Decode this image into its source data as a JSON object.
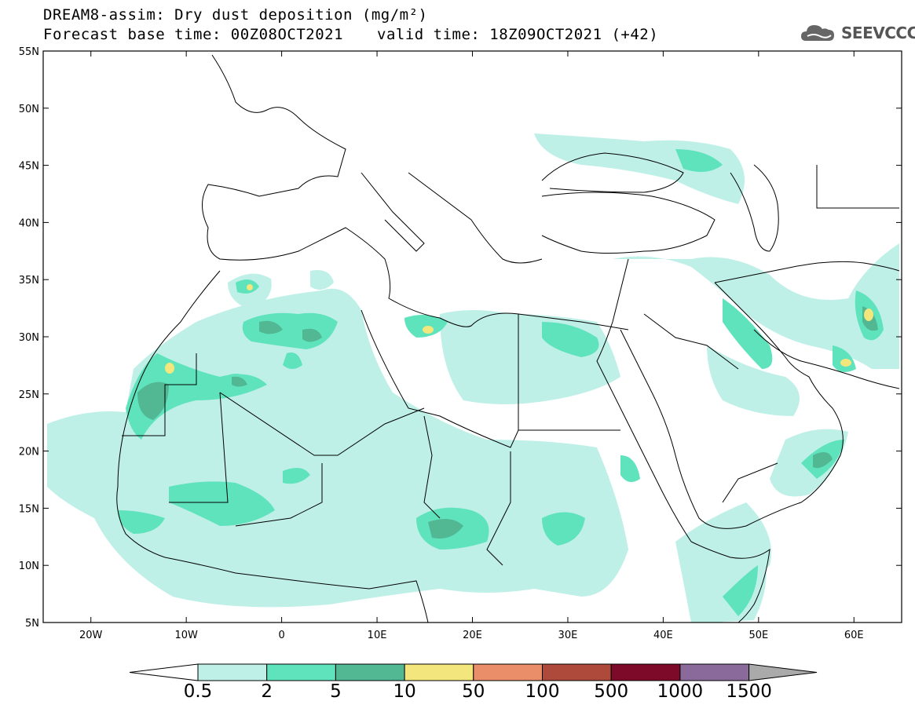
{
  "header": {
    "title": "DREAM8-assim: Dry dust deposition (mg/m²)",
    "base_time": "Forecast base time: 00Z08OCT2021",
    "valid_time": "valid time: 18Z09OCT2021 (+42)",
    "logo_text": "SEEVCCC"
  },
  "map": {
    "lat_labels": [
      "55N",
      "50N",
      "45N",
      "40N",
      "35N",
      "30N",
      "25N",
      "20N",
      "15N",
      "10N",
      "5N"
    ],
    "lat_values": [
      55,
      50,
      45,
      40,
      35,
      30,
      25,
      20,
      15,
      10,
      5
    ],
    "lon_labels": [
      "20W",
      "10W",
      "0",
      "10E",
      "20E",
      "30E",
      "40E",
      "50E",
      "60E"
    ],
    "lon_values": [
      -20,
      -10,
      0,
      10,
      20,
      30,
      40,
      50,
      60
    ],
    "extent": {
      "lon_min": -25,
      "lon_max": 65,
      "lat_min": 5,
      "lat_max": 55
    }
  },
  "legend": {
    "levels": [
      "0.5",
      "2",
      "5",
      "10",
      "50",
      "100",
      "500",
      "1000",
      "1500"
    ],
    "colors": [
      "#bff0e8",
      "#5fe3bd",
      "#52b893",
      "#f3e67c",
      "#e98e68",
      "#ad4a3c",
      "#7e0a2a",
      "#8a6a9b",
      "#aaaaaa"
    ]
  }
}
